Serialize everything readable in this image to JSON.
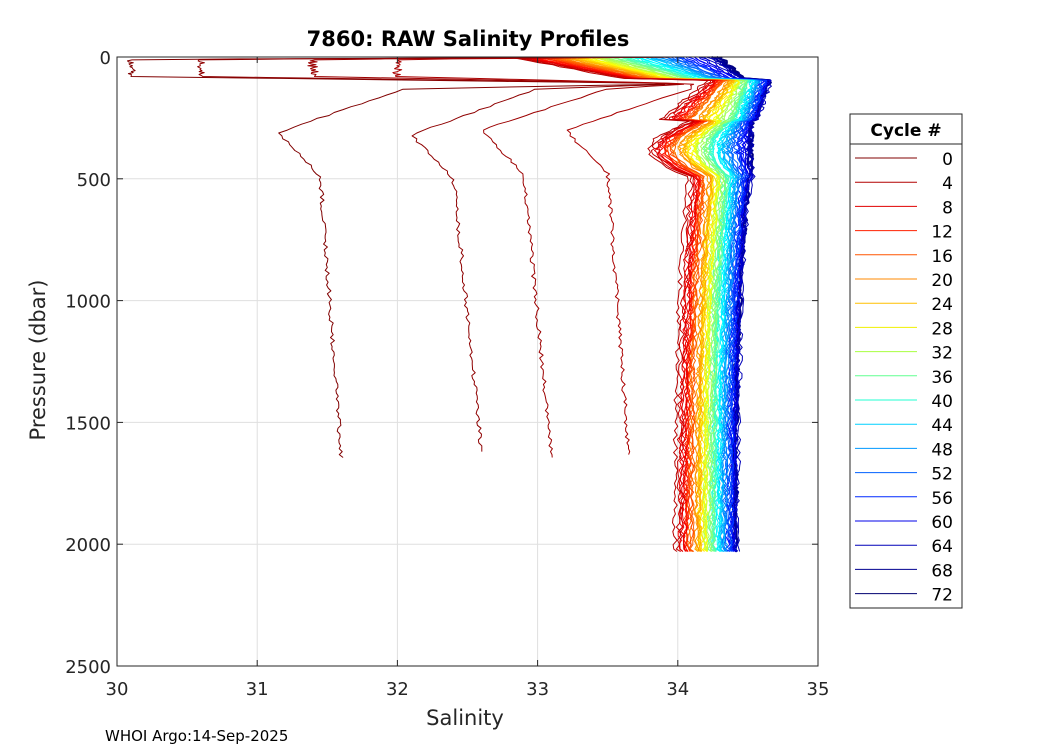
{
  "chart_data": {
    "type": "line",
    "title": "7860: RAW Salinity Profiles",
    "xlabel": "Salinity",
    "ylabel": "Pressure (dbar)",
    "xlim": [
      30,
      35
    ],
    "ylim": [
      0,
      2500
    ],
    "y_reversed": true,
    "grid": true,
    "xticks": [
      30,
      31,
      32,
      33,
      34,
      35
    ],
    "yticks": [
      0,
      500,
      1000,
      1500,
      2000,
      2500
    ],
    "legend": {
      "title": "Cycle #",
      "placement": "right",
      "entries": [
        "0",
        "4",
        "8",
        "12",
        "16",
        "20",
        "24",
        "28",
        "32",
        "36",
        "40",
        "44",
        "48",
        "52",
        "56",
        "60",
        "64",
        "68",
        "72"
      ],
      "colors": [
        "#800000",
        "#b20000",
        "#e00000",
        "#ff2000",
        "#ff5500",
        "#ff8a00",
        "#ffbf00",
        "#f0f000",
        "#a8ff40",
        "#60ff90",
        "#20ffd0",
        "#00d0ff",
        "#0098ff",
        "#0060ff",
        "#0028ff",
        "#0000e8",
        "#0000b8",
        "#000090",
        "#000070"
      ]
    },
    "profile_count": 73,
    "early_profiles": [
      {
        "cycle": 0,
        "depth_max": 1650,
        "surface_s": 30.1,
        "min_s": 31.15,
        "min_p": 310,
        "deep_s": 31.6
      },
      {
        "cycle": 1,
        "depth_max": 1620,
        "surface_s": 30.6,
        "min_s": 32.1,
        "min_p": 320,
        "deep_s": 32.6
      },
      {
        "cycle": 2,
        "depth_max": 1650,
        "surface_s": 31.4,
        "min_s": 32.6,
        "min_p": 300,
        "deep_s": 33.1
      },
      {
        "cycle": 3,
        "depth_max": 1640,
        "surface_s": 32.0,
        "min_s": 33.2,
        "min_p": 300,
        "deep_s": 33.65
      }
    ],
    "deep_profiles": {
      "depth_max": 2030,
      "deep_s_first": 33.98,
      "deep_s_last": 34.42,
      "surface_s_first": 32.8,
      "surface_s_last": 34.3
    }
  },
  "footer": "WHOI Argo:14-Sep-2025"
}
